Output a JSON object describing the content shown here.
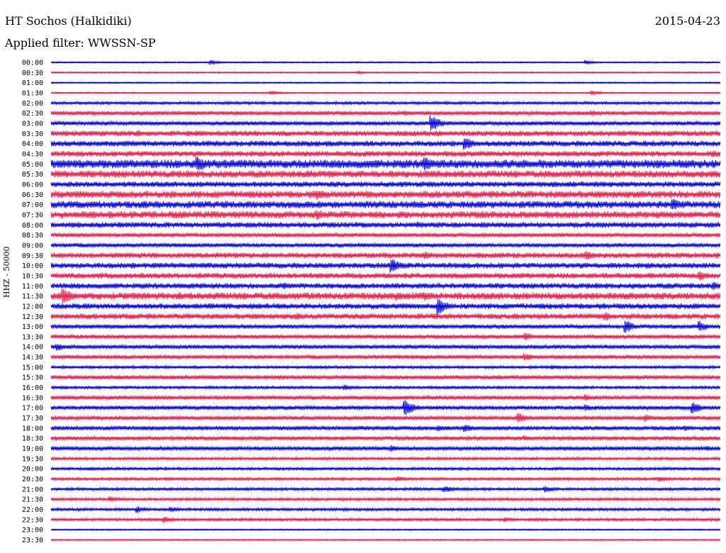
{
  "header": {
    "station": "HT Sochos (Halkidiki)",
    "date": "2015-04-23",
    "filter": "Applied filter: WWSSN-SP"
  },
  "chart_data": {
    "type": "line",
    "title": "HT Sochos (Halkidiki)",
    "subtitle": "Applied filter: WWSSN-SP",
    "ylabel": "HHZ - 50000",
    "xlabel": "",
    "colors": {
      "even_rows": "#0000ee",
      "odd_rows": "#ee1c4a"
    },
    "time_labels": [
      "00:00",
      "00:30",
      "01:00",
      "01:30",
      "02:00",
      "02:30",
      "03:00",
      "03:30",
      "04:00",
      "04:30",
      "05:00",
      "05:30",
      "06:00",
      "06:30",
      "07:00",
      "07:30",
      "08:00",
      "08:30",
      "09:00",
      "09:30",
      "10:00",
      "10:30",
      "11:00",
      "11:30",
      "12:00",
      "12:30",
      "13:00",
      "13:30",
      "14:00",
      "14:30",
      "15:00",
      "15:30",
      "16:00",
      "16:30",
      "17:00",
      "17:30",
      "18:00",
      "18:30",
      "19:00",
      "19:30",
      "20:00",
      "20:30",
      "21:00",
      "21:30",
      "22:00",
      "22:30",
      "23:00",
      "23:30"
    ],
    "noise_level": [
      1,
      1,
      1,
      1,
      2,
      3,
      3,
      4,
      4,
      4,
      6,
      5,
      4,
      5,
      5,
      5,
      4,
      3,
      3,
      4,
      4,
      4,
      4,
      5,
      4,
      4,
      3,
      3,
      3,
      3,
      2,
      3,
      2,
      3,
      3,
      3,
      3,
      3,
      3,
      2,
      2,
      2,
      2,
      2,
      2,
      2,
      1,
      1
    ],
    "events": [
      {
        "row": 0,
        "t": 0.24,
        "amp": 3
      },
      {
        "row": 0,
        "t": 0.8,
        "amp": 3
      },
      {
        "row": 1,
        "t": 0.46,
        "amp": 2
      },
      {
        "row": 3,
        "t": 0.33,
        "amp": 3
      },
      {
        "row": 3,
        "t": 0.81,
        "amp": 3
      },
      {
        "row": 5,
        "t": 0.53,
        "amp": 4
      },
      {
        "row": 5,
        "t": 0.81,
        "amp": 4
      },
      {
        "row": 6,
        "t": 0.57,
        "amp": 12
      },
      {
        "row": 7,
        "t": 0.13,
        "amp": 5
      },
      {
        "row": 7,
        "t": 0.22,
        "amp": 5
      },
      {
        "row": 8,
        "t": 0.62,
        "amp": 9
      },
      {
        "row": 8,
        "t": 0.11,
        "amp": 4
      },
      {
        "row": 8,
        "t": 0.83,
        "amp": 4
      },
      {
        "row": 9,
        "t": 0.43,
        "amp": 4
      },
      {
        "row": 9,
        "t": 0.99,
        "amp": 5
      },
      {
        "row": 10,
        "t": 0.22,
        "amp": 12
      },
      {
        "row": 10,
        "t": 0.56,
        "amp": 11
      },
      {
        "row": 11,
        "t": 0.56,
        "amp": 6
      },
      {
        "row": 13,
        "t": 0.4,
        "amp": 8
      },
      {
        "row": 14,
        "t": 0.93,
        "amp": 9
      },
      {
        "row": 15,
        "t": 0.4,
        "amp": 8
      },
      {
        "row": 16,
        "t": 0.55,
        "amp": 5
      },
      {
        "row": 19,
        "t": 0.56,
        "amp": 6
      },
      {
        "row": 19,
        "t": 0.8,
        "amp": 7
      },
      {
        "row": 20,
        "t": 0.51,
        "amp": 10
      },
      {
        "row": 21,
        "t": 0.6,
        "amp": 5
      },
      {
        "row": 21,
        "t": 0.97,
        "amp": 8
      },
      {
        "row": 22,
        "t": 0.35,
        "amp": 5
      },
      {
        "row": 22,
        "t": 0.99,
        "amp": 6
      },
      {
        "row": 23,
        "t": 0.02,
        "amp": 12
      },
      {
        "row": 23,
        "t": 0.52,
        "amp": 7
      },
      {
        "row": 23,
        "t": 0.56,
        "amp": 7
      },
      {
        "row": 24,
        "t": 0.58,
        "amp": 12
      },
      {
        "row": 25,
        "t": 0.37,
        "amp": 5
      },
      {
        "row": 25,
        "t": 0.83,
        "amp": 6
      },
      {
        "row": 26,
        "t": 0.86,
        "amp": 9
      },
      {
        "row": 26,
        "t": 0.97,
        "amp": 8
      },
      {
        "row": 27,
        "t": 0.71,
        "amp": 6
      },
      {
        "row": 28,
        "t": 0.01,
        "amp": 6
      },
      {
        "row": 29,
        "t": 0.71,
        "amp": 6
      },
      {
        "row": 30,
        "t": 0.75,
        "amp": 4
      },
      {
        "row": 32,
        "t": 0.44,
        "amp": 4
      },
      {
        "row": 33,
        "t": 0.8,
        "amp": 5
      },
      {
        "row": 34,
        "t": 0.53,
        "amp": 12
      },
      {
        "row": 34,
        "t": 0.96,
        "amp": 9
      },
      {
        "row": 34,
        "t": 0.8,
        "amp": 5
      },
      {
        "row": 35,
        "t": 0.7,
        "amp": 7
      },
      {
        "row": 35,
        "t": 0.89,
        "amp": 5
      },
      {
        "row": 36,
        "t": 0.62,
        "amp": 6
      },
      {
        "row": 36,
        "t": 0.58,
        "amp": 5
      },
      {
        "row": 36,
        "t": 0.95,
        "amp": 4
      },
      {
        "row": 37,
        "t": 0.71,
        "amp": 4
      },
      {
        "row": 38,
        "t": 0.51,
        "amp": 5
      },
      {
        "row": 38,
        "t": 0.98,
        "amp": 4
      },
      {
        "row": 40,
        "t": 0.06,
        "amp": 3
      },
      {
        "row": 41,
        "t": 0.52,
        "amp": 4
      },
      {
        "row": 41,
        "t": 0.91,
        "amp": 4
      },
      {
        "row": 42,
        "t": 0.59,
        "amp": 5
      },
      {
        "row": 42,
        "t": 0.74,
        "amp": 5
      },
      {
        "row": 43,
        "t": 0.09,
        "amp": 4
      },
      {
        "row": 44,
        "t": 0.13,
        "amp": 5
      },
      {
        "row": 44,
        "t": 0.18,
        "amp": 4
      },
      {
        "row": 45,
        "t": 0.17,
        "amp": 5
      },
      {
        "row": 45,
        "t": 0.68,
        "amp": 4
      }
    ]
  }
}
